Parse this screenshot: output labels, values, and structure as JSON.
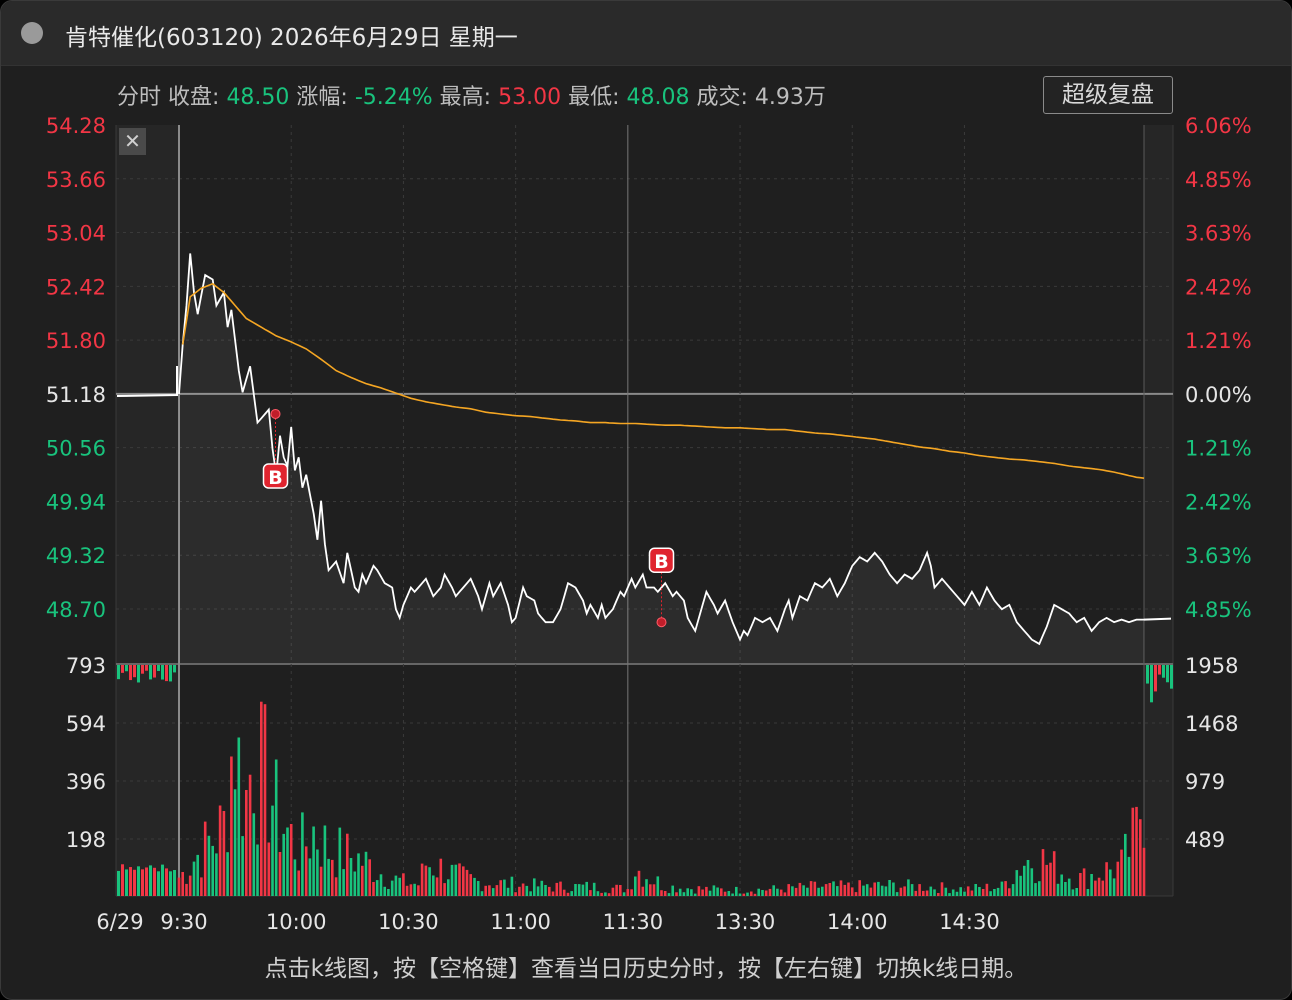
{
  "window": {
    "title": "肯特催化(603120) 2026年6月29日 星期一"
  },
  "info_bar": {
    "mode": "分时",
    "close_label": "收盘:",
    "close_value": "48.50",
    "change_label": "涨幅:",
    "change_value": "-5.24%",
    "high_label": "最高:",
    "high_value": "53.00",
    "low_label": "最低:",
    "low_value": "48.08",
    "volume_label": "成交:",
    "volume_value": "4.93万"
  },
  "replay_button": {
    "label": "超级复盘"
  },
  "close_icon": "close-icon",
  "footer": {
    "hint": "点击k线图，按【空格键】查看当日历史分时，按【左右键】切换k线日期。"
  },
  "colors": {
    "up": "#f23645",
    "down": "#19c37d",
    "price_line": "#ffffff",
    "avg_line": "#f5a623",
    "marker": "#e0242f",
    "background": "#1f1f1f"
  },
  "chart_data": {
    "type": "line",
    "date_label": "6/29",
    "price_axis_left": [
      "54.28",
      "53.66",
      "53.04",
      "52.42",
      "51.80",
      "51.18",
      "50.56",
      "49.94",
      "49.32",
      "48.70"
    ],
    "percent_axis_right": [
      "6.06%",
      "4.85%",
      "3.63%",
      "2.42%",
      "1.21%",
      "0.00%",
      "1.21%",
      "2.42%",
      "3.63%",
      "4.85%"
    ],
    "volume_axis_left": [
      "793",
      "594",
      "396",
      "198"
    ],
    "volume_axis_right": [
      "1958",
      "1468",
      "979",
      "489"
    ],
    "time_ticks": [
      "9:30",
      "10:00",
      "10:30",
      "11:00",
      "11:30",
      "13:30",
      "14:00",
      "14:30"
    ],
    "prev_close": 51.18,
    "ylim": [
      48.08,
      54.28
    ],
    "volume_ylim": [
      0,
      793
    ],
    "markers": [
      {
        "label": "B",
        "time": "9:54",
        "price": 50.95
      },
      {
        "label": "B",
        "time": "11:30",
        "price": 48.55
      }
    ],
    "price_knots": [
      [
        0,
        51.18
      ],
      [
        1,
        51.75
      ],
      [
        2,
        52.2
      ],
      [
        3,
        52.8
      ],
      [
        4,
        52.35
      ],
      [
        5,
        52.1
      ],
      [
        7,
        52.55
      ],
      [
        9,
        52.5
      ],
      [
        10,
        52.2
      ],
      [
        12,
        52.35
      ],
      [
        13,
        51.95
      ],
      [
        14,
        52.15
      ],
      [
        15,
        51.8
      ],
      [
        16,
        51.45
      ],
      [
        17,
        51.2
      ],
      [
        19,
        51.5
      ],
      [
        21,
        50.85
      ],
      [
        22,
        50.9
      ],
      [
        24,
        51.0
      ],
      [
        25,
        50.55
      ],
      [
        26,
        50.25
      ],
      [
        27,
        50.7
      ],
      [
        28,
        50.45
      ],
      [
        29,
        50.35
      ],
      [
        30,
        50.8
      ],
      [
        31,
        50.3
      ],
      [
        32,
        50.45
      ],
      [
        33,
        50.1
      ],
      [
        34,
        50.25
      ],
      [
        36,
        49.8
      ],
      [
        37,
        49.5
      ],
      [
        38,
        49.95
      ],
      [
        39,
        49.45
      ],
      [
        40,
        49.15
      ],
      [
        42,
        49.25
      ],
      [
        44,
        49.0
      ],
      [
        45,
        49.35
      ],
      [
        47,
        48.95
      ],
      [
        48,
        48.9
      ],
      [
        49,
        49.1
      ],
      [
        50,
        49.0
      ],
      [
        52,
        49.2
      ],
      [
        53,
        49.15
      ],
      [
        55,
        49.0
      ],
      [
        57,
        48.95
      ],
      [
        58,
        48.7
      ],
      [
        59,
        48.6
      ],
      [
        60,
        48.75
      ],
      [
        62,
        48.95
      ],
      [
        63,
        48.9
      ],
      [
        65,
        49.0
      ],
      [
        66,
        49.05
      ],
      [
        68,
        48.85
      ],
      [
        70,
        48.95
      ],
      [
        71,
        49.1
      ],
      [
        73,
        48.95
      ],
      [
        74,
        48.85
      ],
      [
        76,
        48.95
      ],
      [
        78,
        49.05
      ],
      [
        80,
        48.85
      ],
      [
        81,
        48.7
      ],
      [
        83,
        49.0
      ],
      [
        84,
        48.85
      ],
      [
        86,
        49.0
      ],
      [
        88,
        48.75
      ],
      [
        89,
        48.55
      ],
      [
        90,
        48.6
      ],
      [
        92,
        48.95
      ],
      [
        93,
        48.85
      ],
      [
        95,
        48.8
      ],
      [
        96,
        48.65
      ],
      [
        98,
        48.55
      ],
      [
        100,
        48.55
      ],
      [
        102,
        48.7
      ],
      [
        103,
        48.85
      ],
      [
        104,
        49.0
      ],
      [
        106,
        48.95
      ],
      [
        108,
        48.8
      ],
      [
        109,
        48.65
      ],
      [
        110,
        48.75
      ],
      [
        112,
        48.6
      ],
      [
        113,
        48.75
      ],
      [
        114,
        48.6
      ],
      [
        116,
        48.7
      ],
      [
        118,
        48.9
      ],
      [
        119,
        48.85
      ],
      [
        121,
        49.05
      ],
      [
        122,
        48.95
      ],
      [
        124,
        49.1
      ],
      [
        125,
        48.95
      ],
      [
        127,
        48.95
      ],
      [
        128,
        48.9
      ],
      [
        130,
        49.0
      ],
      [
        132,
        48.85
      ],
      [
        133,
        48.9
      ],
      [
        135,
        48.8
      ],
      [
        136,
        48.6
      ],
      [
        138,
        48.45
      ],
      [
        139,
        48.6
      ],
      [
        141,
        48.9
      ],
      [
        143,
        48.75
      ],
      [
        144,
        48.65
      ],
      [
        146,
        48.8
      ],
      [
        148,
        48.55
      ],
      [
        150,
        48.35
      ],
      [
        151,
        48.45
      ],
      [
        152,
        48.4
      ],
      [
        154,
        48.6
      ],
      [
        156,
        48.55
      ],
      [
        158,
        48.6
      ],
      [
        160,
        48.45
      ],
      [
        162,
        48.7
      ],
      [
        163,
        48.8
      ],
      [
        164,
        48.6
      ],
      [
        166,
        48.85
      ],
      [
        168,
        48.8
      ],
      [
        170,
        49.0
      ],
      [
        172,
        48.95
      ],
      [
        174,
        49.05
      ],
      [
        176,
        48.85
      ],
      [
        178,
        49.0
      ],
      [
        180,
        49.2
      ],
      [
        182,
        49.3
      ],
      [
        184,
        49.25
      ],
      [
        186,
        49.35
      ],
      [
        188,
        49.25
      ],
      [
        190,
        49.1
      ],
      [
        192,
        49.0
      ],
      [
        194,
        49.1
      ],
      [
        196,
        49.05
      ],
      [
        198,
        49.15
      ],
      [
        200,
        49.35
      ],
      [
        201,
        49.2
      ],
      [
        202,
        48.95
      ],
      [
        204,
        49.05
      ],
      [
        206,
        48.95
      ],
      [
        208,
        48.85
      ],
      [
        210,
        48.75
      ],
      [
        212,
        48.9
      ],
      [
        214,
        48.75
      ],
      [
        216,
        48.95
      ],
      [
        218,
        48.8
      ],
      [
        220,
        48.7
      ],
      [
        222,
        48.75
      ],
      [
        224,
        48.55
      ],
      [
        226,
        48.45
      ],
      [
        228,
        48.35
      ],
      [
        230,
        48.3
      ],
      [
        232,
        48.5
      ],
      [
        234,
        48.75
      ],
      [
        236,
        48.7
      ],
      [
        238,
        48.65
      ],
      [
        240,
        48.55
      ],
      [
        242,
        48.6
      ],
      [
        244,
        48.45
      ],
      [
        246,
        48.55
      ],
      [
        248,
        48.6
      ],
      [
        250,
        48.55
      ],
      [
        252,
        48.58
      ],
      [
        254,
        48.55
      ],
      [
        256,
        48.58
      ],
      [
        258,
        48.58
      ]
    ],
    "avg_knots": [
      [
        1,
        51.75
      ],
      [
        3,
        52.3
      ],
      [
        6,
        52.4
      ],
      [
        9,
        52.45
      ],
      [
        12,
        52.35
      ],
      [
        15,
        52.2
      ],
      [
        18,
        52.05
      ],
      [
        22,
        51.95
      ],
      [
        26,
        51.85
      ],
      [
        30,
        51.78
      ],
      [
        34,
        51.7
      ],
      [
        38,
        51.58
      ],
      [
        42,
        51.45
      ],
      [
        46,
        51.37
      ],
      [
        50,
        51.3
      ],
      [
        54,
        51.25
      ],
      [
        58,
        51.19
      ],
      [
        62,
        51.13
      ],
      [
        66,
        51.09
      ],
      [
        70,
        51.06
      ],
      [
        74,
        51.03
      ],
      [
        78,
        51.01
      ],
      [
        82,
        50.97
      ],
      [
        86,
        50.95
      ],
      [
        90,
        50.93
      ],
      [
        94,
        50.92
      ],
      [
        98,
        50.9
      ],
      [
        102,
        50.88
      ],
      [
        106,
        50.87
      ],
      [
        110,
        50.85
      ],
      [
        114,
        50.85
      ],
      [
        118,
        50.84
      ],
      [
        122,
        50.84
      ],
      [
        126,
        50.83
      ],
      [
        130,
        50.82
      ],
      [
        134,
        50.82
      ],
      [
        138,
        50.81
      ],
      [
        142,
        50.8
      ],
      [
        146,
        50.79
      ],
      [
        150,
        50.79
      ],
      [
        154,
        50.78
      ],
      [
        158,
        50.77
      ],
      [
        162,
        50.77
      ],
      [
        166,
        50.75
      ],
      [
        170,
        50.73
      ],
      [
        174,
        50.72
      ],
      [
        178,
        50.7
      ],
      [
        182,
        50.68
      ],
      [
        186,
        50.66
      ],
      [
        190,
        50.63
      ],
      [
        194,
        50.6
      ],
      [
        198,
        50.57
      ],
      [
        202,
        50.55
      ],
      [
        206,
        50.52
      ],
      [
        210,
        50.5
      ],
      [
        214,
        50.47
      ],
      [
        218,
        50.45
      ],
      [
        222,
        50.43
      ],
      [
        226,
        50.42
      ],
      [
        230,
        50.4
      ],
      [
        234,
        50.38
      ],
      [
        238,
        50.35
      ],
      [
        242,
        50.33
      ],
      [
        246,
        50.31
      ],
      [
        250,
        50.28
      ],
      [
        254,
        50.24
      ],
      [
        256,
        50.22
      ],
      [
        258,
        50.21
      ]
    ],
    "volume_peaks": [
      [
        0,
        80
      ],
      [
        2,
        110
      ],
      [
        4,
        160
      ],
      [
        6,
        190
      ],
      [
        8,
        230
      ],
      [
        10,
        260
      ],
      [
        12,
        300
      ],
      [
        14,
        600
      ],
      [
        15,
        720
      ],
      [
        16,
        550
      ],
      [
        18,
        420
      ],
      [
        20,
        640
      ],
      [
        22,
        520
      ],
      [
        24,
        480
      ],
      [
        26,
        360
      ],
      [
        28,
        300
      ],
      [
        30,
        250
      ],
      [
        32,
        200
      ],
      [
        34,
        230
      ],
      [
        36,
        280
      ],
      [
        40,
        200
      ],
      [
        44,
        180
      ],
      [
        48,
        160
      ],
      [
        52,
        120
      ],
      [
        56,
        80
      ],
      [
        60,
        60
      ],
      [
        64,
        50
      ],
      [
        66,
        140
      ],
      [
        70,
        120
      ],
      [
        74,
        90
      ],
      [
        80,
        60
      ],
      [
        90,
        50
      ],
      [
        100,
        40
      ],
      [
        110,
        40
      ],
      [
        120,
        30
      ],
      [
        122,
        120
      ],
      [
        130,
        40
      ],
      [
        140,
        30
      ],
      [
        150,
        25
      ],
      [
        160,
        30
      ],
      [
        170,
        40
      ],
      [
        180,
        40
      ],
      [
        190,
        45
      ],
      [
        200,
        40
      ],
      [
        210,
        30
      ],
      [
        220,
        40
      ],
      [
        226,
        150
      ],
      [
        230,
        160
      ],
      [
        240,
        70
      ],
      [
        244,
        90
      ],
      [
        248,
        110
      ],
      [
        252,
        130
      ],
      [
        256,
        270
      ],
      [
        258,
        480
      ]
    ]
  }
}
